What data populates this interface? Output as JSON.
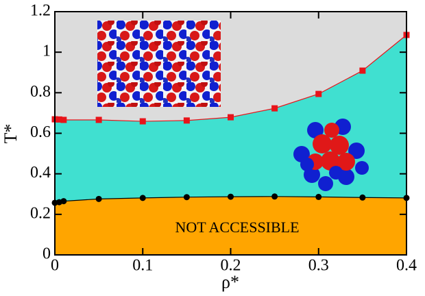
{
  "chart_data": {
    "type": "line",
    "xlabel": "ρ*",
    "ylabel": "T*",
    "annotation": "NOT ACCESSIBLE",
    "background": "#dcdcdc",
    "x": [
      0,
      0.005,
      0.01,
      0.05,
      0.1,
      0.15,
      0.2,
      0.25,
      0.3,
      0.35,
      0.4
    ],
    "series": [
      {
        "color": "#e8141a",
        "marker": "square",
        "fill": "#40e0d0",
        "values": [
          0.669,
          0.668,
          0.666,
          0.666,
          0.659,
          0.663,
          0.679,
          0.723,
          0.794,
          0.909,
          1.085
        ]
      },
      {
        "color": "#000000",
        "marker": "circle",
        "fill": "#ffa500",
        "values": [
          0.257,
          0.26,
          0.265,
          0.276,
          0.281,
          0.285,
          0.287,
          0.288,
          0.286,
          0.283,
          0.281
        ]
      }
    ],
    "xlim": [
      0,
      0.4
    ],
    "xticks": [
      0,
      0.1,
      0.2,
      0.3,
      0.4
    ],
    "ylim": [
      0,
      1.2
    ],
    "yticks": [
      0,
      0.2,
      0.4,
      0.6,
      0.8,
      1,
      1.2
    ]
  }
}
